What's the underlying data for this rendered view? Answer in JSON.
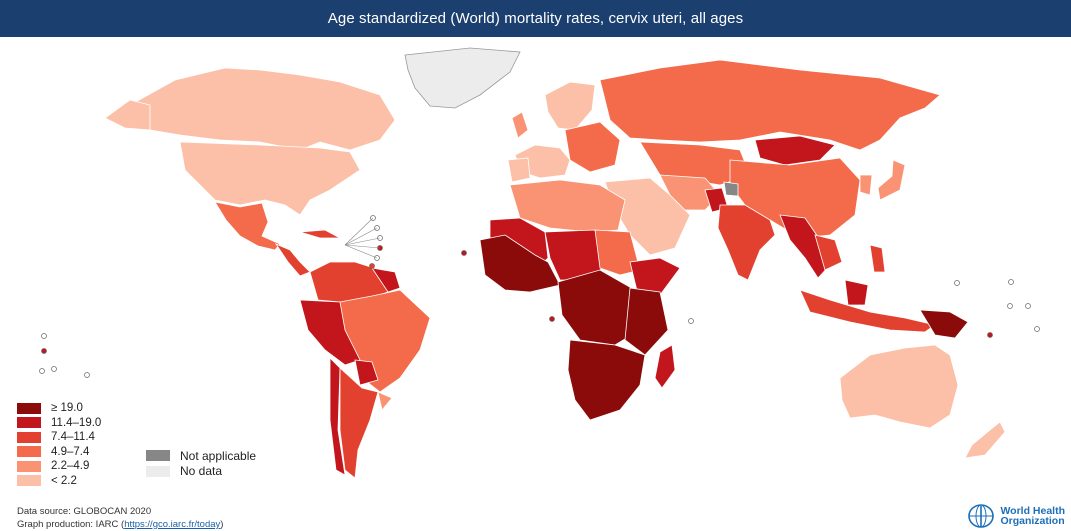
{
  "title": "Age standardized (World) mortality rates, cervix uteri, all ages",
  "legend": {
    "classes": [
      {
        "label": "≥ 19.0",
        "color": "#8b0a0a"
      },
      {
        "label": "11.4–19.0",
        "color": "#c3161c"
      },
      {
        "label": "7.4–11.4",
        "color": "#e3412f"
      },
      {
        "label": "4.9–7.4",
        "color": "#f36b4a"
      },
      {
        "label": "2.2–4.9",
        "color": "#f99373"
      },
      {
        "label": "< 2.2",
        "color": "#fbc0a7"
      }
    ],
    "special": [
      {
        "label": "Not applicable",
        "color": "#878787"
      },
      {
        "label": "No data",
        "color": "#ececec"
      }
    ]
  },
  "footer": {
    "source": "Data source: GLOBOCAN 2020",
    "production_prefix": "Graph production: IARC (",
    "production_link": "https://gco.iarc.fr/today",
    "production_suffix": ")"
  },
  "logo": {
    "line1": "World Health",
    "line2": "Organization",
    "icon": "who-emblem-icon"
  }
}
